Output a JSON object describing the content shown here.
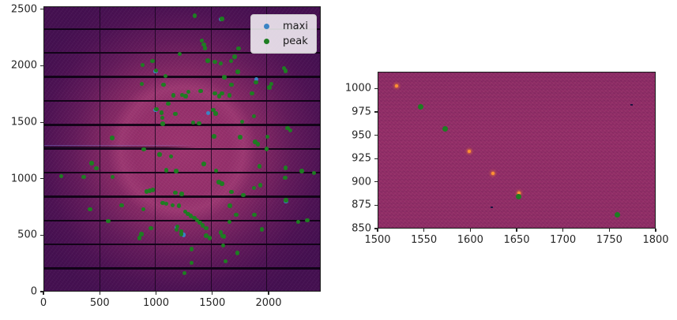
{
  "figure": {
    "background": "#ffffff",
    "description": "Two-panel matplotlib figure: full detector image with peak-finding scatter overlay (left) and zoomed detector region (right)"
  },
  "colors": {
    "maxi_marker": "#3a84c4",
    "peak_marker": "#1e7d22",
    "detector_dark": "#451051",
    "detector_glow": "#9e3570",
    "crop_background": "#922e68",
    "module_gap": "#0d0214",
    "hot_pixel": "#ff9233",
    "axis_text": "#262626"
  },
  "chart_data": [
    {
      "type": "scatter",
      "title": "",
      "xlabel": "",
      "ylabel": "",
      "xlim": [
        0,
        2463
      ],
      "ylim": [
        0,
        2527
      ],
      "xticks": [
        "0",
        "500",
        "1000",
        "1500",
        "2000"
      ],
      "xtick_values": [
        0,
        500,
        1000,
        1500,
        2000
      ],
      "yticks": [
        "0",
        "500",
        "1000",
        "1500",
        "2000",
        "2500"
      ],
      "ytick_values": [
        0,
        500,
        1000,
        1500,
        2000,
        2500
      ],
      "grid": false,
      "legend": {
        "position": "upper right",
        "entries": [
          {
            "label": "maxi",
            "color": "#3a84c4"
          },
          {
            "label": "peak",
            "color": "#1e7d22"
          }
        ]
      },
      "image_features": {
        "description": "Pilatus-style detector image, dark purple with pink diffraction glow centered mid-detector",
        "module_gaps_x": [
          494,
          988,
          1482,
          1976
        ],
        "module_gaps_y": [
          212,
          424,
          636,
          848,
          1060,
          1272,
          1484,
          1696,
          1908,
          2120,
          2332
        ],
        "beamstop_streak": {
          "y": 1290,
          "x_from": 0,
          "x_to": 1355
        }
      },
      "series": [
        {
          "name": "maxi",
          "color": "#3a84c4",
          "marker_px": 5.5,
          "points": [
            [
              1883,
              1890
            ],
            [
              1237,
              508
            ],
            [
              2147,
              810
            ],
            [
              988,
              1958
            ],
            [
              1572,
              2418
            ],
            [
              1177,
              575
            ],
            [
              991,
              1617
            ],
            [
              1457,
              1588
            ]
          ]
        },
        {
          "name": "peak",
          "color": "#1e7d22",
          "marker_px": 5.5,
          "points": [
            [
              1336,
              2450
            ],
            [
              1578,
              2424
            ],
            [
              1400,
              2230
            ],
            [
              1417,
              2196
            ],
            [
              1429,
              2163
            ],
            [
              1727,
              2160
            ],
            [
              1202,
              2112
            ],
            [
              1690,
              2088
            ],
            [
              962,
              2049
            ],
            [
              875,
              2014
            ],
            [
              994,
              1965
            ],
            [
              1451,
              2051
            ],
            [
              1517,
              2042
            ],
            [
              1570,
              2028
            ],
            [
              1659,
              2049
            ],
            [
              1718,
              1954
            ],
            [
              2128,
              1986
            ],
            [
              2145,
              1961
            ],
            [
              1076,
              1915
            ],
            [
              1601,
              1906
            ],
            [
              868,
              1845
            ],
            [
              1060,
              1841
            ],
            [
              1664,
              1841
            ],
            [
              1879,
              1861
            ],
            [
              2016,
              1848
            ],
            [
              2000,
              1816
            ],
            [
              1223,
              1750
            ],
            [
              1148,
              1746
            ],
            [
              1279,
              1776
            ],
            [
              1391,
              1785
            ],
            [
              1256,
              1737
            ],
            [
              1517,
              1762
            ],
            [
              1578,
              1762
            ],
            [
              1554,
              1737
            ],
            [
              1645,
              1746
            ],
            [
              1844,
              1762
            ],
            [
              1102,
              1672
            ],
            [
              997,
              1624
            ],
            [
              1041,
              1591
            ],
            [
              1165,
              1582
            ],
            [
              1048,
              1545
            ],
            [
              1053,
              1494
            ],
            [
              1501,
              1617
            ],
            [
              1522,
              1584
            ],
            [
              1862,
              1559
            ],
            [
              1323,
              1506
            ],
            [
              1377,
              1497
            ],
            [
              1757,
              1513
            ],
            [
              602,
              1367
            ],
            [
              885,
              1268
            ],
            [
              1510,
              1381
            ],
            [
              2163,
              1455
            ],
            [
              2187,
              1435
            ],
            [
              1741,
              1374
            ],
            [
              1984,
              1379
            ],
            [
              1874,
              1335
            ],
            [
              1897,
              1314
            ],
            [
              1974,
              1270
            ],
            [
              1127,
              1203
            ],
            [
              1025,
              1220
            ],
            [
              420,
              1146
            ],
            [
              462,
              1099
            ],
            [
              1085,
              1081
            ],
            [
              1172,
              1074
            ],
            [
              150,
              1028
            ],
            [
              350,
              1021
            ],
            [
              607,
              1021
            ],
            [
              1419,
              1139
            ],
            [
              1526,
              1078
            ],
            [
              1911,
              1116
            ],
            [
              2142,
              1104
            ],
            [
              2287,
              1076
            ],
            [
              2398,
              1056
            ],
            [
              2140,
              1014
            ],
            [
              908,
              894
            ],
            [
              938,
              901
            ],
            [
              966,
              908
            ],
            [
              1165,
              884
            ],
            [
              1221,
              873
            ],
            [
              1552,
              977
            ],
            [
              1578,
              963
            ],
            [
              1862,
              924
            ],
            [
              1918,
              949
            ],
            [
              1662,
              889
            ],
            [
              1769,
              861
            ],
            [
              2147,
              818
            ],
            [
              689,
              773
            ],
            [
              406,
              737
            ],
            [
              880,
              737
            ],
            [
              1053,
              792
            ],
            [
              1083,
              787
            ],
            [
              1141,
              773
            ],
            [
              1195,
              769
            ],
            [
              570,
              633
            ],
            [
              1648,
              767
            ],
            [
              1704,
              688
            ],
            [
              1868,
              688
            ],
            [
              2257,
              626
            ],
            [
              1645,
              624
            ],
            [
              2335,
              640
            ],
            [
              1251,
              714
            ],
            [
              1277,
              693
            ],
            [
              1302,
              676
            ],
            [
              1333,
              658
            ],
            [
              1358,
              637
            ],
            [
              1381,
              617
            ],
            [
              1407,
              593
            ],
            [
              1437,
              570
            ],
            [
              1177,
              554
            ],
            [
              1216,
              540
            ],
            [
              948,
              570
            ],
            [
              1183,
              582
            ],
            [
              864,
              515
            ],
            [
              845,
              480
            ],
            [
              1218,
              515
            ],
            [
              1932,
              559
            ],
            [
              1439,
              501
            ],
            [
              1469,
              482
            ],
            [
              1598,
              494
            ],
            [
              1568,
              531
            ],
            [
              1582,
              499
            ],
            [
              1591,
              414
            ],
            [
              1310,
              384
            ],
            [
              1715,
              349
            ],
            [
              1609,
              274
            ],
            [
              1310,
              262
            ],
            [
              1247,
              170
            ]
          ]
        }
      ]
    },
    {
      "type": "scatter",
      "title": "",
      "xlabel": "",
      "ylabel": "",
      "xlim": [
        1500,
        1800
      ],
      "ylim": [
        850,
        1018
      ],
      "xticks": [
        "1500",
        "1550",
        "1600",
        "1650",
        "1700",
        "1750",
        "1800"
      ],
      "xtick_values": [
        1500,
        1550,
        1600,
        1650,
        1700,
        1750,
        1800
      ],
      "yticks": [
        "850",
        "875",
        "900",
        "925",
        "950",
        "975",
        "1000"
      ],
      "ytick_values": [
        850,
        875,
        900,
        925,
        950,
        975,
        1000
      ],
      "grid": false,
      "legend": null,
      "series": [
        {
          "name": "peak",
          "color": "#1e7d22",
          "marker_px": 7,
          "points": [
            [
              1546,
              981
            ],
            [
              1572,
              958
            ],
            [
              1651,
              885
            ],
            [
              1758,
              866
            ]
          ]
        }
      ],
      "image_features": {
        "description": "Zoomed crop of detector image, reddish-magenta noise",
        "hot_pixels": [
          [
            1520,
            1004
          ],
          [
            1598,
            934
          ],
          [
            1624,
            910
          ],
          [
            1652,
            889
          ]
        ],
        "dark_pixels": [
          [
            1773,
            983
          ],
          [
            1622,
            874
          ]
        ]
      }
    }
  ]
}
